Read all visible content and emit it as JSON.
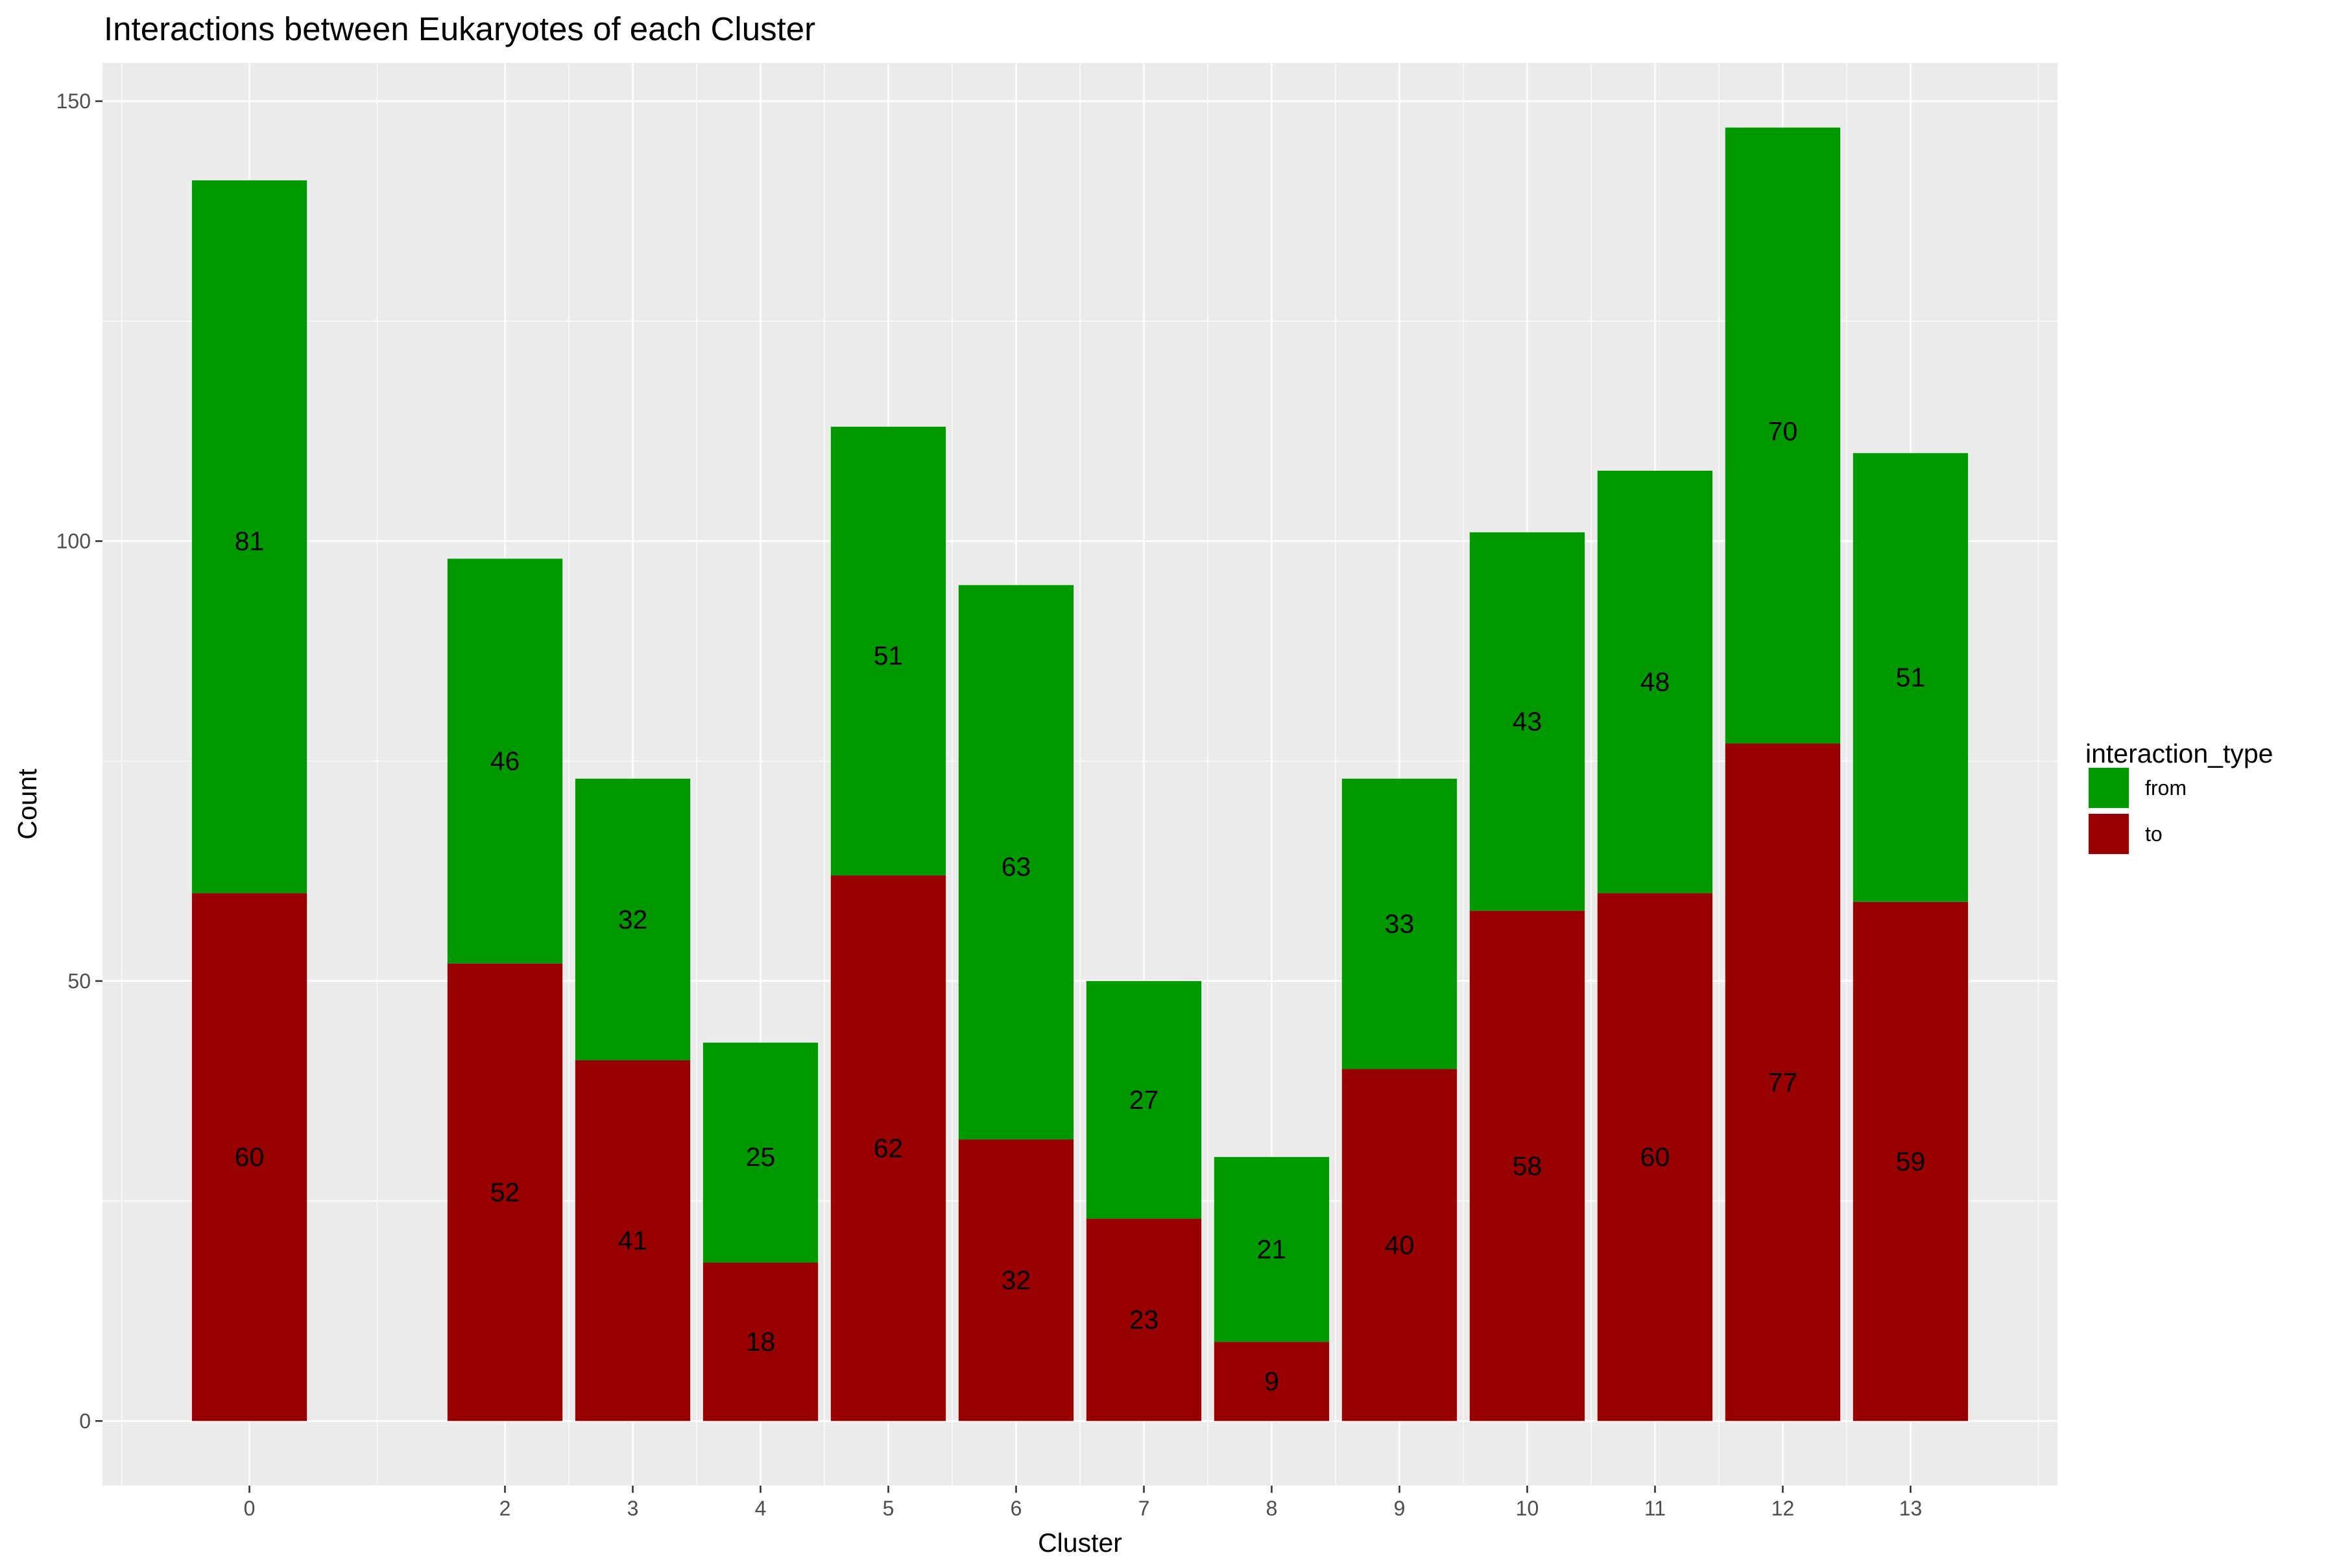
{
  "chart_data": {
    "type": "bar",
    "stacked": true,
    "title": "Interactions between Eukaryotes of each Cluster",
    "xlabel": "Cluster",
    "ylabel": "Count",
    "x_tick_labels": [
      "0",
      "2",
      "3",
      "4",
      "5",
      "6",
      "7",
      "8",
      "9",
      "10",
      "11",
      "12",
      "13"
    ],
    "x": [
      0,
      2,
      3,
      4,
      5,
      6,
      7,
      8,
      9,
      10,
      11,
      12,
      13
    ],
    "xlim": [
      -1.15,
      14.15
    ],
    "ylim": [
      -7.35,
      154.35
    ],
    "y_ticks": [
      0,
      50,
      100,
      150
    ],
    "y_tick_labels": [
      "0",
      "50",
      "100",
      "150"
    ],
    "grid": true,
    "legend": {
      "title": "interaction_type",
      "position": "right",
      "entries": [
        {
          "label": "from",
          "color": "#009900"
        },
        {
          "label": "to",
          "color": "#990000"
        }
      ]
    },
    "series": [
      {
        "name": "to",
        "color": "#990000",
        "values": [
          60,
          52,
          41,
          18,
          62,
          32,
          23,
          9,
          40,
          58,
          60,
          77,
          59
        ]
      },
      {
        "name": "from",
        "color": "#009900",
        "values": [
          81,
          46,
          32,
          25,
          51,
          63,
          27,
          21,
          33,
          43,
          48,
          70,
          51
        ]
      }
    ],
    "label_positions": {
      "from": [
        100,
        75,
        57,
        30,
        87,
        63,
        36.5,
        19.5,
        56.5,
        79.5,
        84,
        112.5,
        84.5
      ],
      "to": [
        30,
        26,
        20.5,
        9,
        31,
        16,
        11.5,
        4.5,
        20,
        29,
        30,
        38.5,
        29.5
      ]
    },
    "colors": {
      "panel_background": "#ebebeb",
      "grid": "#ffffff",
      "tick": "#333333"
    }
  }
}
